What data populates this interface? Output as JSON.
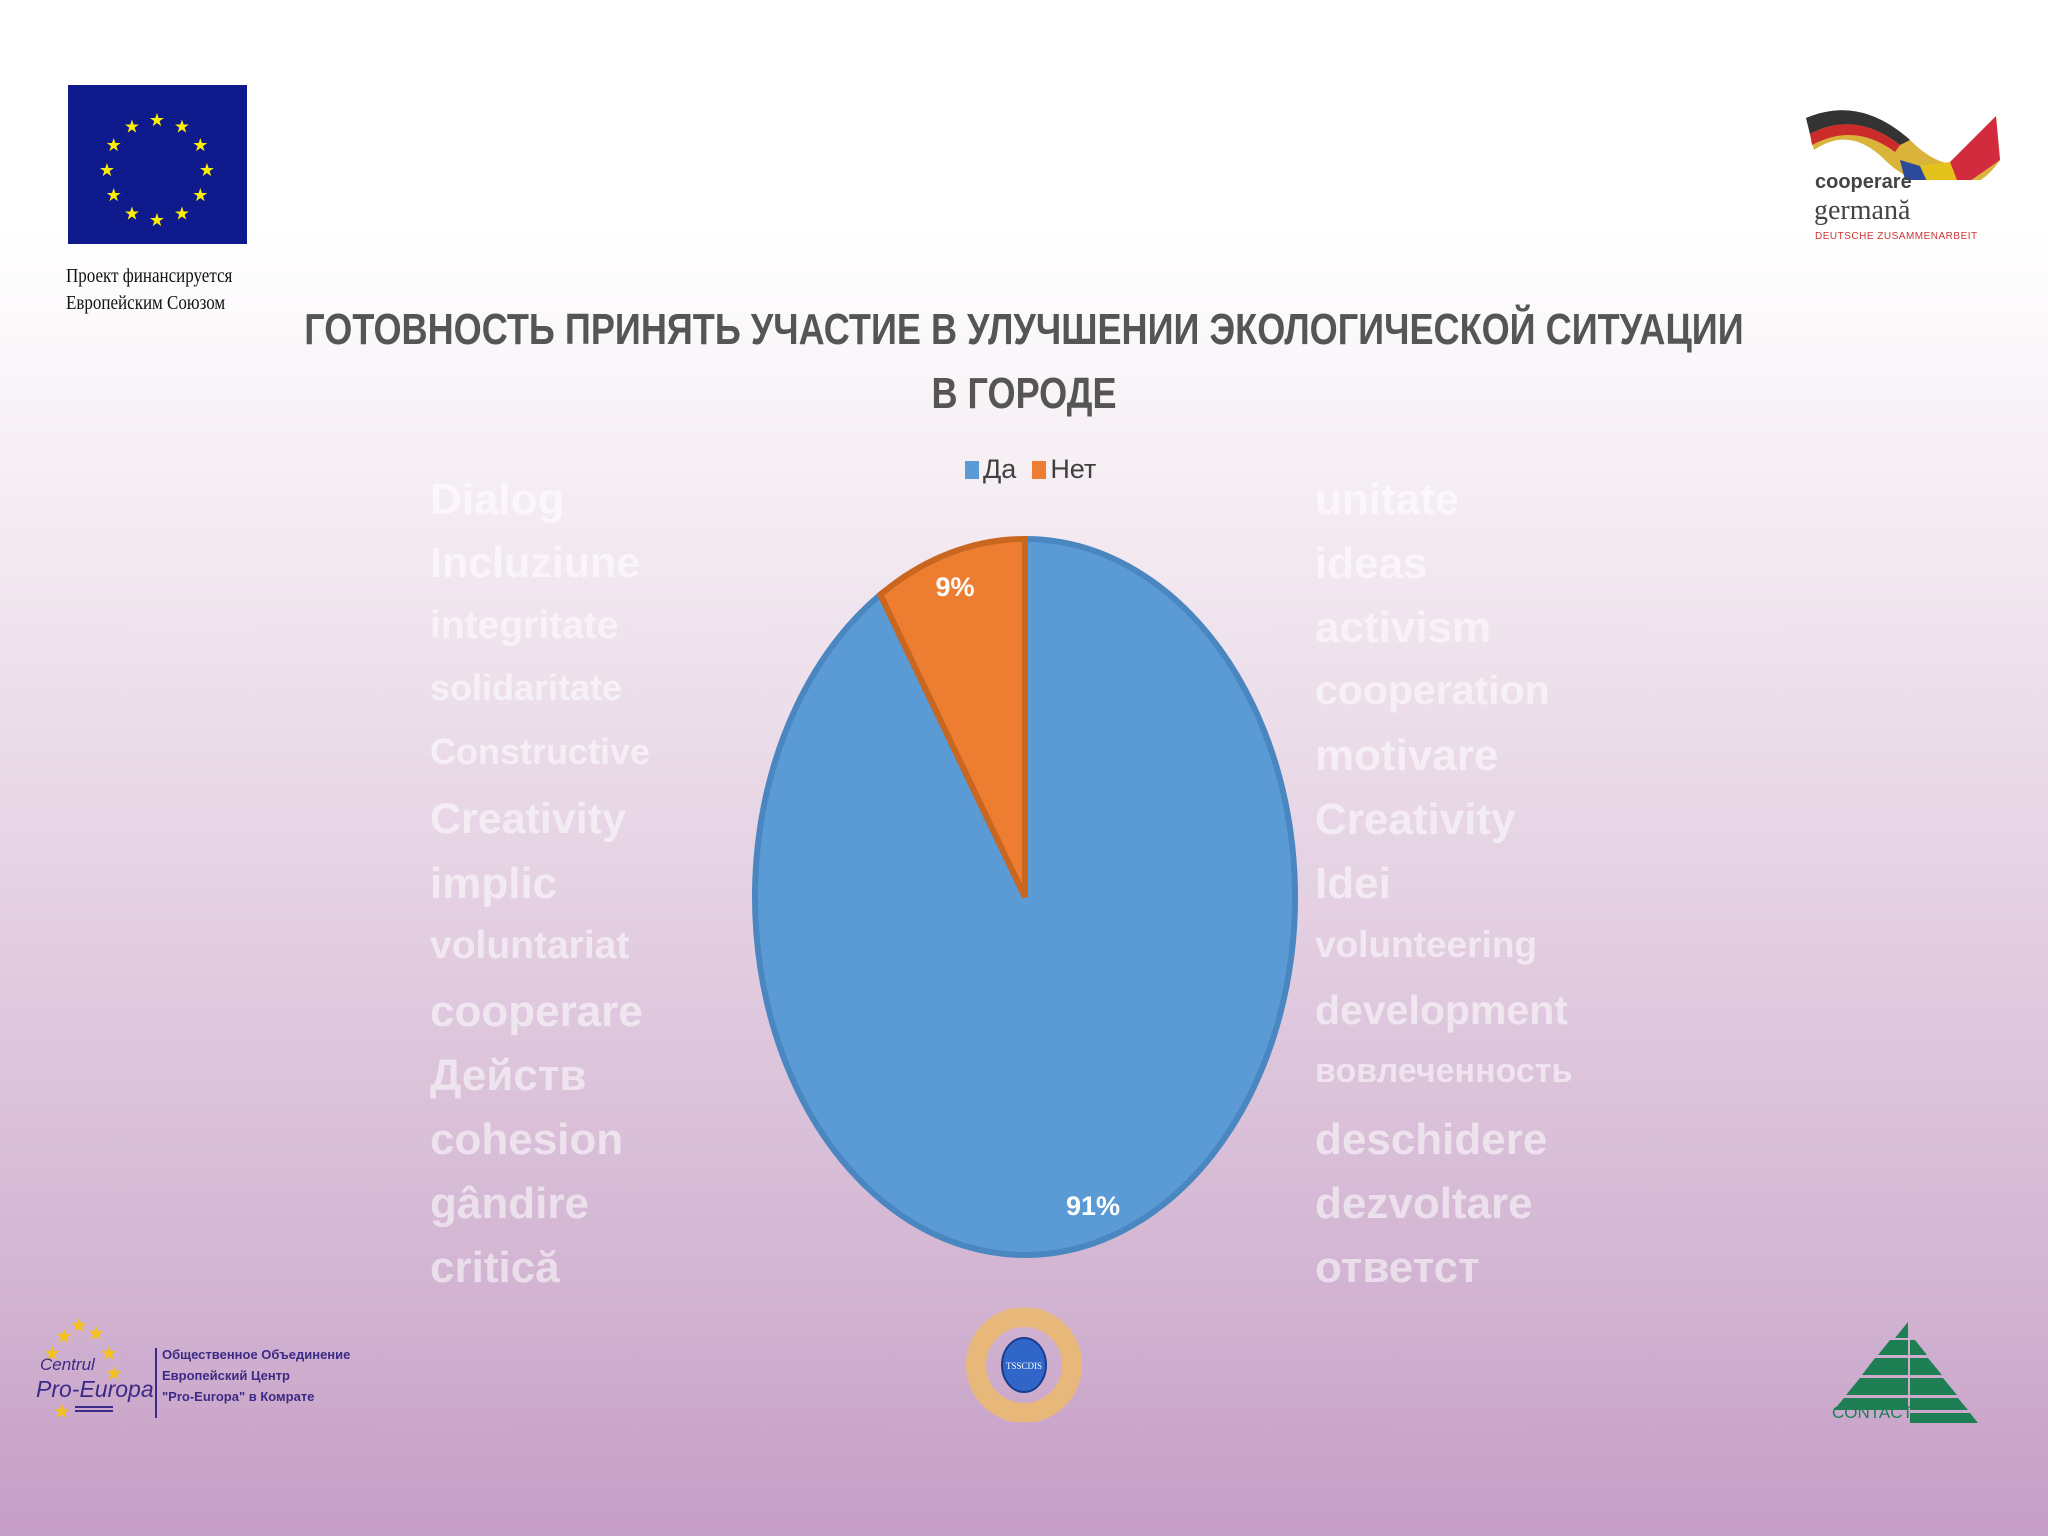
{
  "chart_data": {
    "type": "pie",
    "title": "ГОТОВНОСТЬ ПРИНЯТЬ УЧАСТИЕ В УЛУЧШЕНИИ ЭКОЛОГИЧЕСКОЙ СИТУАЦИИ В ГОРОДЕ",
    "title_lines": [
      "ГОТОВНОСТЬ ПРИНЯТЬ УЧАСТИЕ В УЛУЧШЕНИИ ЭКОЛОГИЧЕСКОЙ СИТУАЦИИ",
      "В ГОРОДЕ"
    ],
    "categories": [
      "Да",
      "Нет"
    ],
    "values": [
      91,
      9
    ],
    "labels": [
      "91%",
      "9%"
    ],
    "colors": [
      "#5b9bd5",
      "#ed7d31"
    ],
    "legend_position": "top"
  },
  "logos": {
    "eu_caption": [
      "Проект финансируется",
      "Европейским Союзом"
    ],
    "giz": {
      "line1": "cooperare",
      "line2": "germană",
      "line3": "DEUTSCHE ZUSAMMENARBEIT"
    },
    "pro_europa": {
      "name1": "Centrul",
      "name2": "Pro-Europa",
      "text": [
        "Общественное Объединение",
        "Европейский Центр",
        "\"Pro-Europa\" в Комрате"
      ]
    },
    "hands": "TSSCDIS",
    "contact": "CONTACT"
  },
  "background_words": [
    "Dialog",
    "Incluziune",
    "integritate",
    "solidaritate",
    "Constructive",
    "Creativity",
    "implic",
    "voluntariat",
    "cooperare",
    "Действ",
    "cohesion",
    "gândire",
    "critică",
    "unitate",
    "ideas",
    "activism",
    "cooperation",
    "motivare",
    "Creativity",
    "Idei",
    "volunteering",
    "development",
    "вовлеченность",
    "deschidere",
    "dezvoltare",
    "ответст"
  ]
}
